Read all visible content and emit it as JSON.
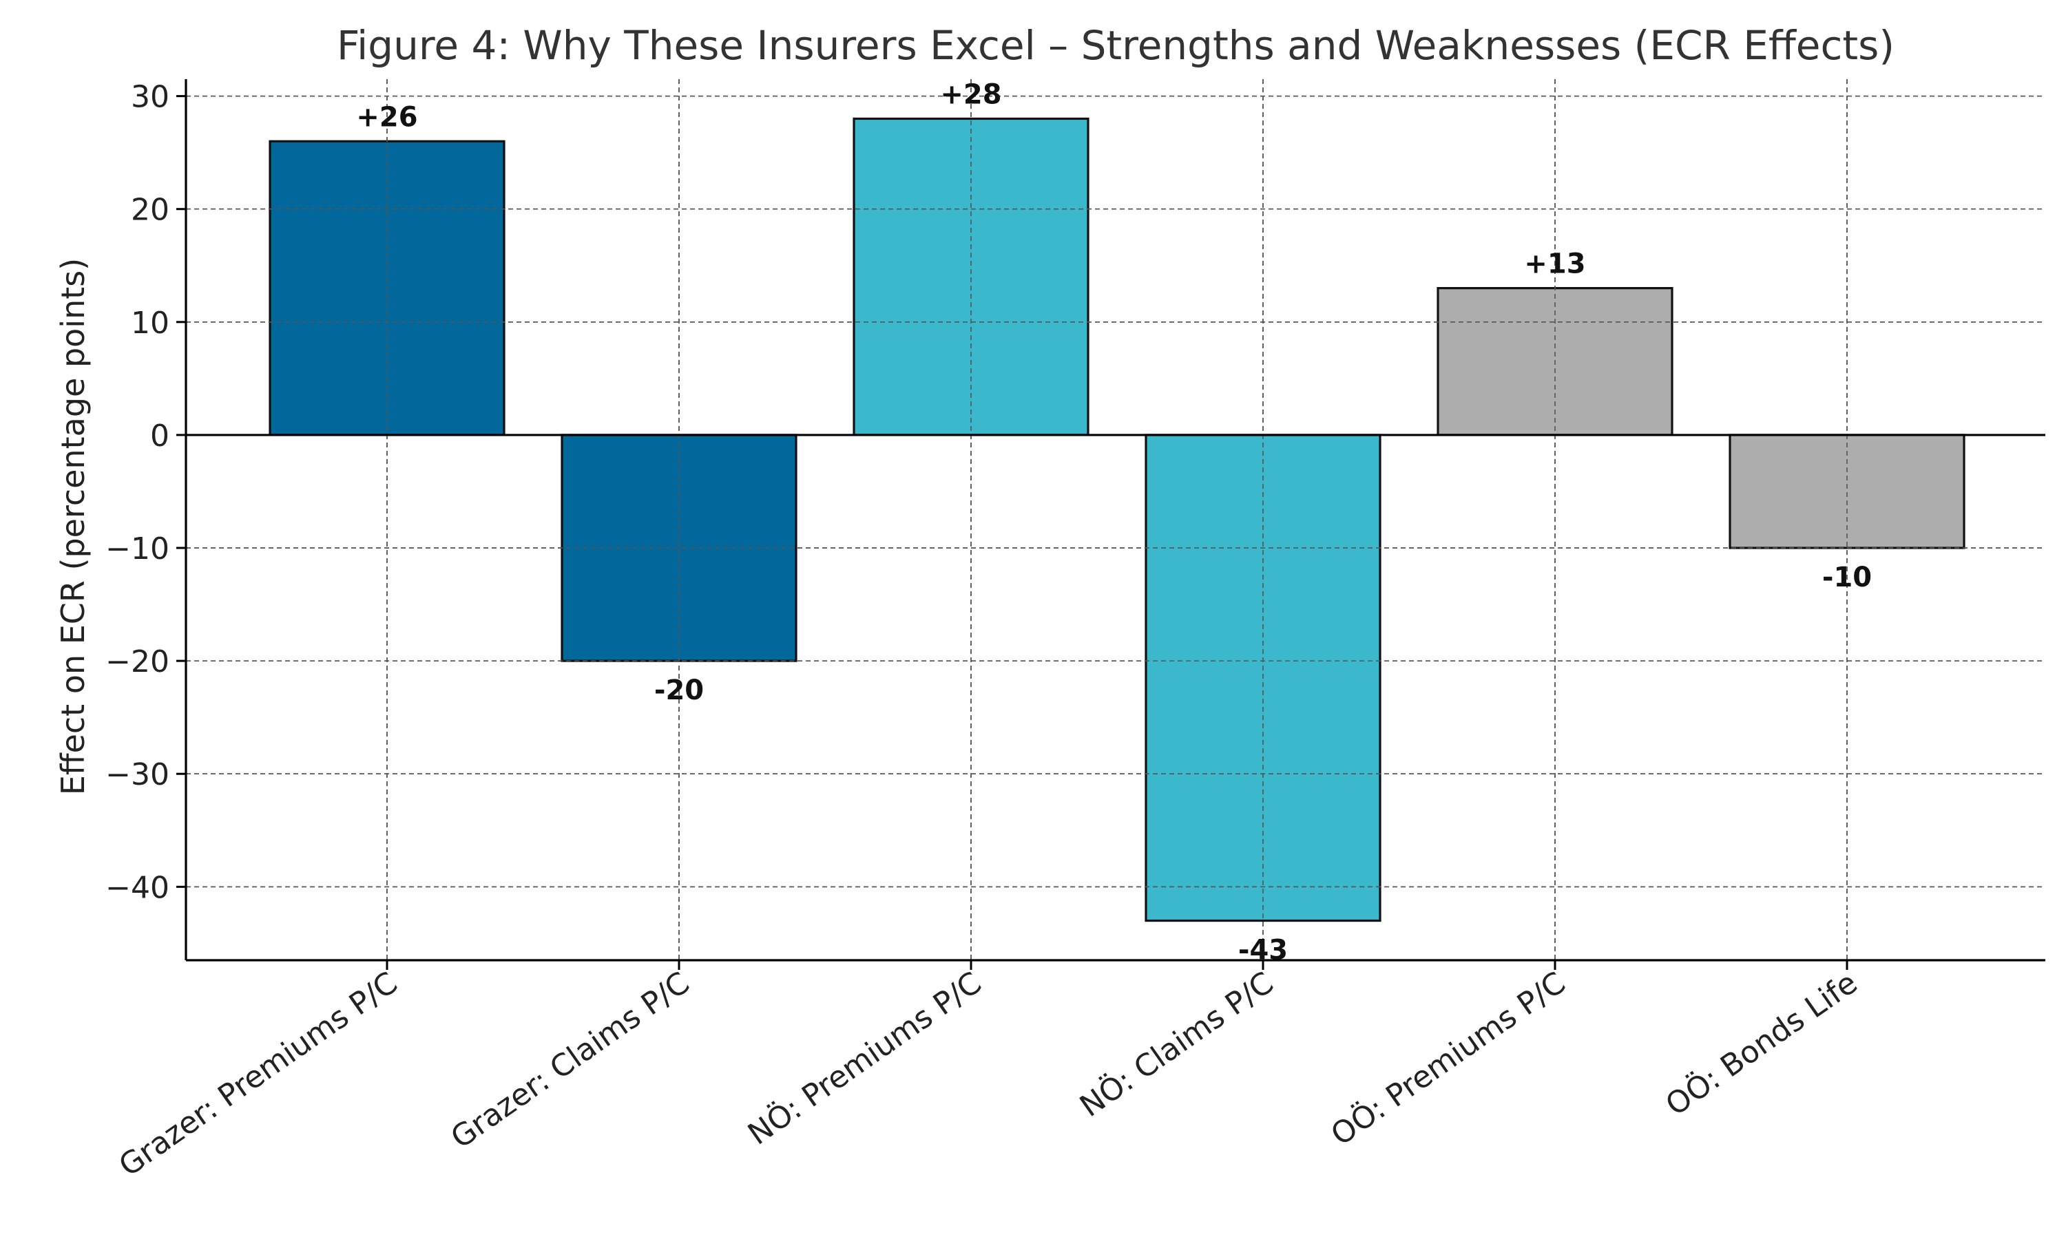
{
  "chart_data": {
    "type": "bar",
    "title": "Figure 4: Why These Insurers Excel – Strengths and Weaknesses (ECR Effects)",
    "xlabel": "",
    "ylabel": "Effect on ECR (percentage points)",
    "categories": [
      "Grazer: Premiums P/C",
      "Grazer: Claims P/C",
      "NÖ: Premiums P/C",
      "NÖ: Claims P/C",
      "OÖ: Premiums P/C",
      "OÖ: Bonds Life"
    ],
    "values": [
      26,
      -20,
      28,
      -43,
      13,
      -10
    ],
    "value_labels": [
      "+26",
      "-20",
      "+28",
      "-43",
      "+13",
      "-10"
    ],
    "bar_colors": [
      "#02679b",
      "#02679b",
      "#3bb8cb",
      "#3bb8cb",
      "#adadad",
      "#adadad"
    ],
    "ylim": [
      -46.5,
      31.5
    ],
    "yticks": [
      30,
      20,
      10,
      0,
      -10,
      -20,
      -30,
      -40
    ],
    "ytick_labels": [
      "30",
      "20",
      "10",
      "0",
      "−10",
      "−20",
      "−30",
      "−40"
    ],
    "grid": true,
    "legend": "none"
  }
}
